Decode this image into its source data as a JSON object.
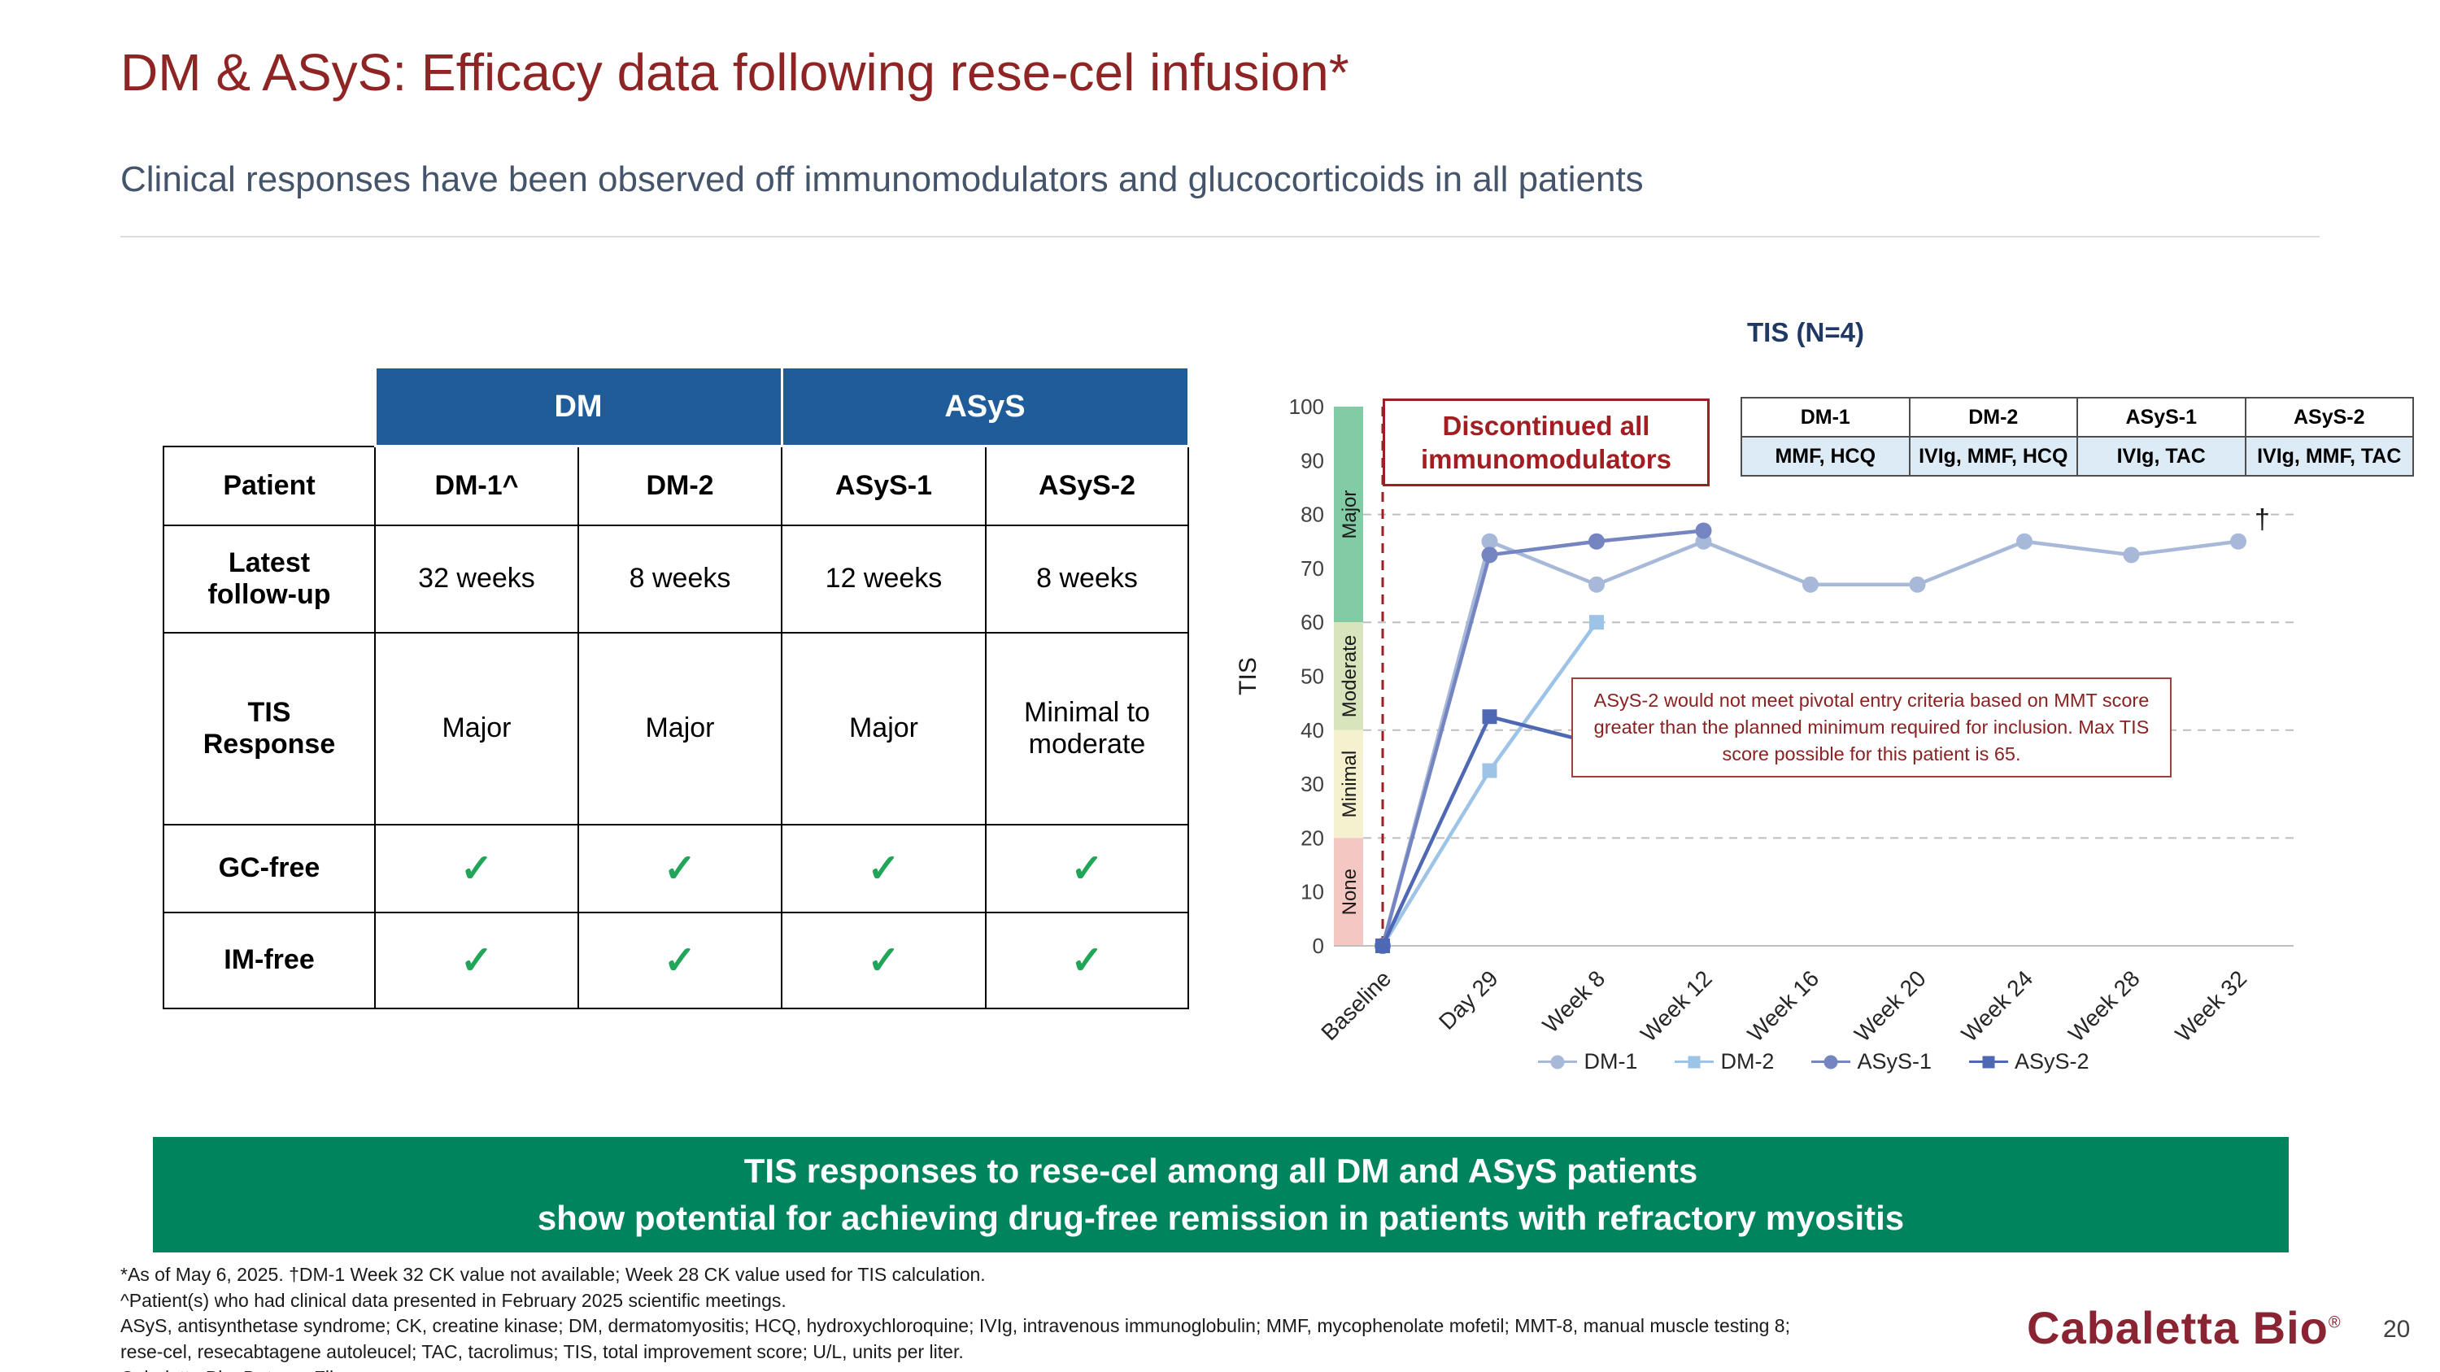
{
  "slide": {
    "title": "DM & ASyS: Efficacy data following rese-cel infusion*",
    "subtitle": "Clinical responses have been observed off immunomodulators and glucocorticoids in all patients",
    "page_number": "20",
    "logo_text": "Cabaletta Bio",
    "logo_reg": "®"
  },
  "colors": {
    "accent_maroon": "#8E2423",
    "table_header_blue": "#1F5C99",
    "banner_green": "#00845E",
    "check_green": "#21A558",
    "chart_title_navy": "#1F3864",
    "annotation_red": "#9C1F23",
    "med_value_bg": "#DDEBF7"
  },
  "table": {
    "group_headers": [
      "DM",
      "ASyS"
    ],
    "rows": [
      {
        "key": "patient",
        "label": "Patient",
        "bold": true,
        "values": [
          "DM-1^",
          "DM-2",
          "ASyS-1",
          "ASyS-2"
        ]
      },
      {
        "key": "latest-follow-up",
        "label": "Latest follow-up",
        "values": [
          "32 weeks",
          "8 weeks",
          "12 weeks",
          "8 weeks"
        ]
      },
      {
        "key": "tis-response",
        "label": "TIS Response",
        "values": [
          "Major",
          "Major",
          "Major",
          "Minimal to moderate"
        ]
      },
      {
        "key": "gc-free",
        "label": "GC-free",
        "check": true,
        "values": [
          "✓",
          "✓",
          "✓",
          "✓"
        ]
      },
      {
        "key": "im-free",
        "label": "IM-free",
        "check": true,
        "values": [
          "✓",
          "✓",
          "✓",
          "✓"
        ]
      }
    ]
  },
  "chart_data": {
    "type": "line",
    "title": "TIS (N=4)",
    "ylabel": "TIS",
    "ylim": [
      0,
      100
    ],
    "yticks": [
      0,
      10,
      20,
      30,
      40,
      50,
      60,
      70,
      80,
      90,
      100
    ],
    "gridlines": [
      20,
      40,
      60,
      80
    ],
    "grid_style": "dashed",
    "legend_position": "bottom",
    "categories": [
      "Baseline",
      "Day 29",
      "Week 8",
      "Week 12",
      "Week 16",
      "Week 20",
      "Week 24",
      "Week 28",
      "Week 32"
    ],
    "bands": [
      {
        "label": "Major",
        "from": 60,
        "to": 100,
        "color": "#82CBA4"
      },
      {
        "label": "Moderate",
        "from": 40,
        "to": 60,
        "color": "#D8E4BC"
      },
      {
        "label": "Minimal",
        "from": 20,
        "to": 40,
        "color": "#F5F0CE"
      },
      {
        "label": "None",
        "from": 0,
        "to": 20,
        "color": "#F4C7C3"
      }
    ],
    "series": [
      {
        "name": "DM-1",
        "marker": "circle",
        "color": "#A8B8D8",
        "values": [
          0,
          75,
          67,
          75,
          67,
          67,
          75,
          72.5,
          75
        ]
      },
      {
        "name": "DM-2",
        "marker": "square",
        "color": "#9DC3E6",
        "values": [
          0,
          32.5,
          60,
          null,
          null,
          null,
          null,
          null,
          null
        ]
      },
      {
        "name": "ASyS-1",
        "marker": "circle",
        "color": "#7585C2",
        "values": [
          0,
          72.5,
          75,
          77,
          null,
          null,
          null,
          null,
          null
        ]
      },
      {
        "name": "ASyS-2",
        "marker": "square",
        "color": "#4F68B3",
        "values": [
          0,
          42.5,
          37.5,
          null,
          null,
          null,
          null,
          null,
          null
        ]
      }
    ],
    "dagger": {
      "series": "DM-1",
      "index": 8,
      "symbol": "†"
    },
    "annotations": {
      "discontinued": "Discontinued all\nimmunomodulators",
      "asys2_note": "ASyS-2 would not meet pivotal entry criteria based on MMT score greater than the planned minimum required for inclusion. Max TIS score possible for this patient is 65."
    },
    "med_table": {
      "headers": [
        "DM-1",
        "DM-2",
        "ASyS-1",
        "ASyS-2"
      ],
      "values": [
        "MMF, HCQ",
        "IVIg, MMF, HCQ",
        "IVIg, TAC",
        "IVIg, MMF, TAC"
      ]
    }
  },
  "banner": {
    "line1": "TIS responses to rese-cel among all DM and ASyS patients",
    "line2": "show potential for achieving drug-free remission in patients with refractory myositis"
  },
  "footnotes": [
    "*As of May 6, 2025. †DM-1 Week 32 CK value not available; Week 28 CK value used for TIS calculation.",
    "^Patient(s) who had clinical data presented in February 2025 scientific meetings.",
    "ASyS, antisynthetase syndrome; CK, creatine kinase; DM, dermatomyositis; HCQ, hydroxychloroquine; IVIg, intravenous immunoglobulin; MMF, mycophenolate mofetil; MMT-8, manual muscle testing 8;",
    "rese-cel, resecabtagene autoleucel; TAC, tacrolimus; TIS, total improvement score; U/L, units per liter.",
    "Cabaletta Bio: Data on File."
  ]
}
